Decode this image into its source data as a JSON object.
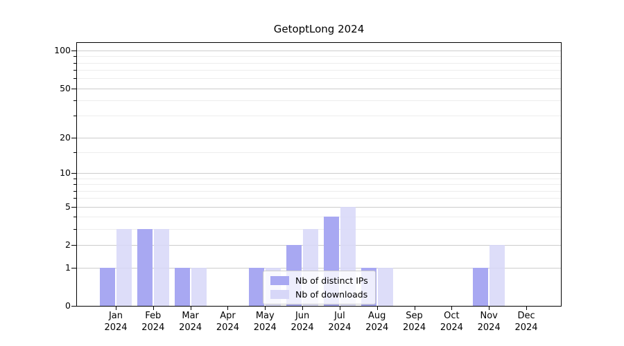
{
  "title": "GetoptLong 2024",
  "colors": {
    "ips_bar": "#a8a8f2",
    "downloads_bar": "#d7d7f8",
    "grid_major": "#cccccc",
    "grid_minor": "#ededed",
    "axis": "#000000",
    "legend_border": "#cccccc"
  },
  "chart_data": {
    "type": "bar",
    "title": "GetoptLong 2024",
    "categories": [
      "Jan",
      "Feb",
      "Mar",
      "Apr",
      "May",
      "Jun",
      "Jul",
      "Aug",
      "Sep",
      "Oct",
      "Nov",
      "Dec"
    ],
    "year": "2024",
    "series": [
      {
        "name": "Nb of distinct IPs",
        "color": "#a8a8f2",
        "values": [
          1,
          3,
          1,
          0,
          1,
          2,
          4,
          1,
          0,
          0,
          1,
          0
        ]
      },
      {
        "name": "Nb of downloads",
        "color": "#d7d7f8",
        "values": [
          3,
          3,
          1,
          0,
          1,
          3,
          5,
          1,
          0,
          0,
          2,
          0
        ]
      }
    ],
    "y_scale": "log1p",
    "y_max": 115,
    "y_ticks": [
      100,
      50,
      20,
      10,
      5,
      2,
      1,
      0
    ],
    "y_minor_ticks": [
      3,
      4,
      6,
      7,
      8,
      9,
      15,
      30,
      40,
      60,
      70,
      80,
      90
    ],
    "grid": true,
    "legend_position": "lower center"
  }
}
